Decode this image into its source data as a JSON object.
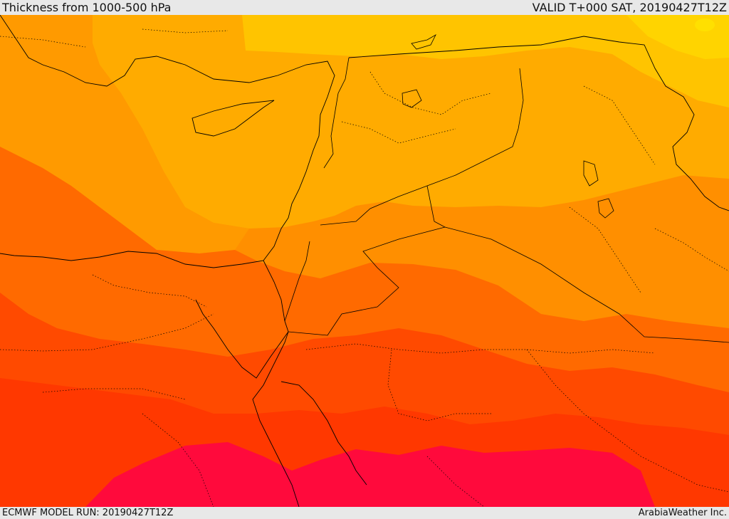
{
  "header": {
    "title": "Thickness from 1000-500 hPa",
    "valid_time": "VALID T+000 SAT, 20190427T12Z"
  },
  "footer": {
    "model_run": "ECMWF MODEL RUN: 20190427T12Z",
    "provider": "ArabiaWeather Inc."
  },
  "map": {
    "colors": {
      "band_1": "#ffd400",
      "band_2": "#ffc400",
      "band_3": "#ffab00",
      "band_4": "#ff8f00",
      "band_5": "#ff6a00",
      "band_6": "#ff4a00",
      "band_7": "#ff3800",
      "band_8": "#ff0a3c",
      "boundary_line": "#000000"
    },
    "overlays": [
      "coastlines",
      "international-borders",
      "dotted-province-borders"
    ]
  }
}
